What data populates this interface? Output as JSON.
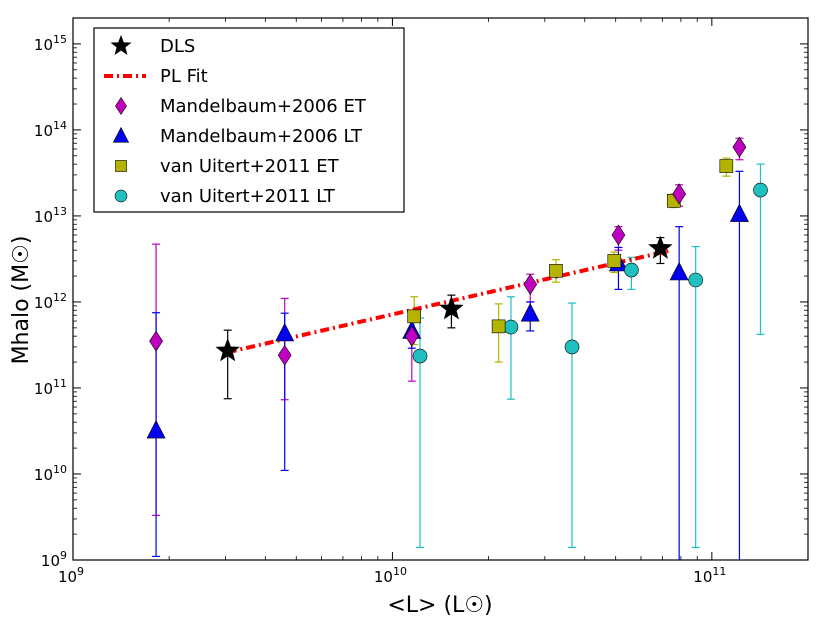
{
  "chart_data": {
    "type": "scatter",
    "title": "",
    "xlabel": "<L> (L☉)",
    "ylabel": "Mhalo (M☉)",
    "xscale": "log",
    "yscale": "log",
    "xlim": [
      1000000000.0,
      200000000000.0
    ],
    "ylim": [
      1000000000.0,
      2000000000000000.0
    ],
    "x_ticks": [
      {
        "value": 1000000000.0,
        "base": "10",
        "exp": "9"
      },
      {
        "value": 10000000000.0,
        "base": "10",
        "exp": "10"
      },
      {
        "value": 100000000000.0,
        "base": "10",
        "exp": "11"
      }
    ],
    "y_ticks": [
      {
        "value": 1000000000.0,
        "base": "10",
        "exp": "9"
      },
      {
        "value": 10000000000.0,
        "base": "10",
        "exp": "10"
      },
      {
        "value": 100000000000.0,
        "base": "10",
        "exp": "11"
      },
      {
        "value": 1000000000000.0,
        "base": "10",
        "exp": "12"
      },
      {
        "value": 10000000000000.0,
        "base": "10",
        "exp": "13"
      },
      {
        "value": 100000000000000.0,
        "base": "10",
        "exp": "14"
      },
      {
        "value": 1000000000000000.0,
        "base": "10",
        "exp": "15"
      }
    ],
    "legend_position": "top-left",
    "series": [
      {
        "name": "DLS",
        "marker": "star",
        "color": "#000000",
        "points": [
          {
            "x": 3050000000.0,
            "y": 270000000000.0,
            "ylo": 75000000000.0,
            "yhi": 470000000000.0
          },
          {
            "x": 15300000000.0,
            "y": 830000000000.0,
            "ylo": 500000000000.0,
            "yhi": 1200000000000.0
          },
          {
            "x": 69000000000.0,
            "y": 4200000000000.0,
            "ylo": 2800000000000.0,
            "yhi": 5600000000000.0
          }
        ]
      },
      {
        "name": "PL Fit",
        "marker": "line",
        "color": "#ff0000",
        "points": [
          {
            "x": 3050000000.0,
            "y": 260000000000.0
          },
          {
            "x": 75000000000.0,
            "y": 4000000000000.0
          }
        ]
      },
      {
        "name": "Mandelbaum+2006 ET",
        "marker": "diamond",
        "color": "#c000c0",
        "points": [
          {
            "x": 1820000000.0,
            "y": 350000000000.0,
            "ylo": 3300000000.0,
            "yhi": 4700000000000.0
          },
          {
            "x": 4600000000.0,
            "y": 240000000000.0,
            "ylo": 73000000000.0,
            "yhi": 1100000000000.0
          },
          {
            "x": 11500000000.0,
            "y": 400000000000.0,
            "ylo": 120000000000.0,
            "yhi": 800000000000.0
          },
          {
            "x": 27000000000.0,
            "y": 1600000000000.0,
            "ylo": 1000000000000.0,
            "yhi": 2100000000000.0
          },
          {
            "x": 51000000000.0,
            "y": 6000000000000.0,
            "ylo": 4000000000000.0,
            "yhi": 7500000000000.0
          },
          {
            "x": 79000000000.0,
            "y": 18000000000000.0,
            "ylo": 13000000000000.0,
            "yhi": 23000000000000.0
          },
          {
            "x": 122000000000.0,
            "y": 63000000000000.0,
            "ylo": 45000000000000.0,
            "yhi": 80000000000000.0
          }
        ]
      },
      {
        "name": "Mandelbaum+2006 LT",
        "marker": "triangle",
        "color": "#0000ee",
        "points": [
          {
            "x": 1820000000.0,
            "y": 32000000000.0,
            "ylo": 1100000000.0,
            "yhi": 750000000000.0
          },
          {
            "x": 4600000000.0,
            "y": 430000000000.0,
            "ylo": 11000000000.0,
            "yhi": 740000000000.0
          },
          {
            "x": 11500000000.0,
            "y": 460000000000.0,
            "ylo": 290000000000.0,
            "yhi": 600000000000.0
          },
          {
            "x": 27000000000.0,
            "y": 730000000000.0,
            "ylo": 460000000000.0,
            "yhi": 1000000000000.0
          },
          {
            "x": 51000000000.0,
            "y": 2800000000000.0,
            "ylo": 1400000000000.0,
            "yhi": 4300000000000.0
          },
          {
            "x": 79000000000.0,
            "y": 2200000000000.0,
            "ylo": 1000000000.0,
            "yhi": 7500000000000.0
          },
          {
            "x": 122000000000.0,
            "y": 10500000000000.0,
            "ylo": 1000000000.0,
            "yhi": 33000000000000.0
          }
        ]
      },
      {
        "name": "van Uitert+2011 ET",
        "marker": "square",
        "color": "#b4b400",
        "points": [
          {
            "x": 11700000000.0,
            "y": 680000000000.0,
            "ylo": 320000000000.0,
            "yhi": 1150000000000.0
          },
          {
            "x": 21500000000.0,
            "y": 520000000000.0,
            "ylo": 200000000000.0,
            "yhi": 950000000000.0
          },
          {
            "x": 32500000000.0,
            "y": 2300000000000.0,
            "ylo": 1700000000000.0,
            "yhi": 3100000000000.0
          },
          {
            "x": 49500000000.0,
            "y": 3000000000000.0,
            "ylo": 2200000000000.0,
            "yhi": 3800000000000.0
          },
          {
            "x": 76000000000.0,
            "y": 15000000000000.0,
            "ylo": 12500000000000.0,
            "yhi": 18000000000000.0
          },
          {
            "x": 111000000000.0,
            "y": 38000000000000.0,
            "ylo": 29000000000000.0,
            "yhi": 47000000000000.0
          }
        ]
      },
      {
        "name": "van Uitert+2011 LT",
        "marker": "circle",
        "color": "#20c0c0",
        "points": [
          {
            "x": 12200000000.0,
            "y": 235000000000.0,
            "ylo": 1400000000.0,
            "yhi": 650000000000.0
          },
          {
            "x": 23500000000.0,
            "y": 510000000000.0,
            "ylo": 74000000000.0,
            "yhi": 1150000000000.0
          },
          {
            "x": 36500000000.0,
            "y": 300000000000.0,
            "ylo": 1400000000.0,
            "yhi": 970000000000.0
          },
          {
            "x": 56000000000.0,
            "y": 2350000000000.0,
            "ylo": 1400000000000.0,
            "yhi": 3300000000000.0
          },
          {
            "x": 89000000000.0,
            "y": 1800000000000.0,
            "ylo": 1400000000.0,
            "yhi": 4400000000000.0
          },
          {
            "x": 142000000000.0,
            "y": 20000000000000.0,
            "ylo": 420000000000.0,
            "yhi": 40000000000000.0
          }
        ]
      }
    ]
  }
}
